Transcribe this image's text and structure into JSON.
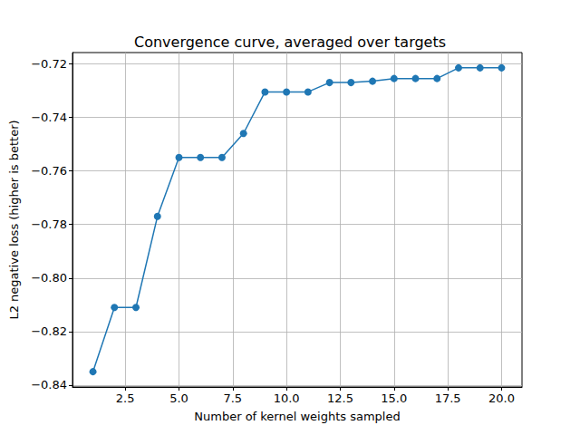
{
  "chart_data": {
    "type": "line",
    "title": "Convergence curve, averaged over targets",
    "x_label": "Number of kernel weights sampled",
    "y_label": "L2 negative loss (higher is better)",
    "x": [
      1,
      2,
      3,
      4,
      5,
      6,
      7,
      8,
      9,
      10,
      11,
      12,
      13,
      14,
      15,
      16,
      17,
      18,
      19,
      20
    ],
    "values": [
      -0.835,
      -0.811,
      -0.811,
      -0.777,
      -0.755,
      -0.755,
      -0.755,
      -0.746,
      -0.7305,
      -0.7305,
      -0.7305,
      -0.727,
      -0.727,
      -0.7265,
      -0.7255,
      -0.7255,
      -0.7255,
      -0.7215,
      -0.7215,
      -0.7215
    ],
    "color": "#1f77b4",
    "marker": "circle",
    "line_style": "solid",
    "xlim": [
      0.05,
      20.95
    ],
    "xticks": [
      2.5,
      {
        "value": 5,
        "label": "5.0"
      },
      7.5,
      {
        "value": 10,
        "label": "10.0"
      },
      12.5,
      {
        "value": 15,
        "label": "15.0"
      },
      17.5,
      {
        "value": 20,
        "label": "20.0"
      }
    ],
    "ylim": [
      -0.8407,
      -0.7158
    ],
    "yticks": [
      {
        "value": -0.84,
        "label": "−0.84"
      },
      {
        "value": -0.82,
        "label": "−0.82"
      },
      {
        "value": -0.8,
        "label": "−0.80"
      },
      {
        "value": -0.78,
        "label": "−0.78"
      },
      {
        "value": -0.76,
        "label": "−0.76"
      },
      {
        "value": -0.74,
        "label": "−0.74"
      },
      {
        "value": -0.72,
        "label": "−0.72"
      }
    ],
    "grid": true
  }
}
